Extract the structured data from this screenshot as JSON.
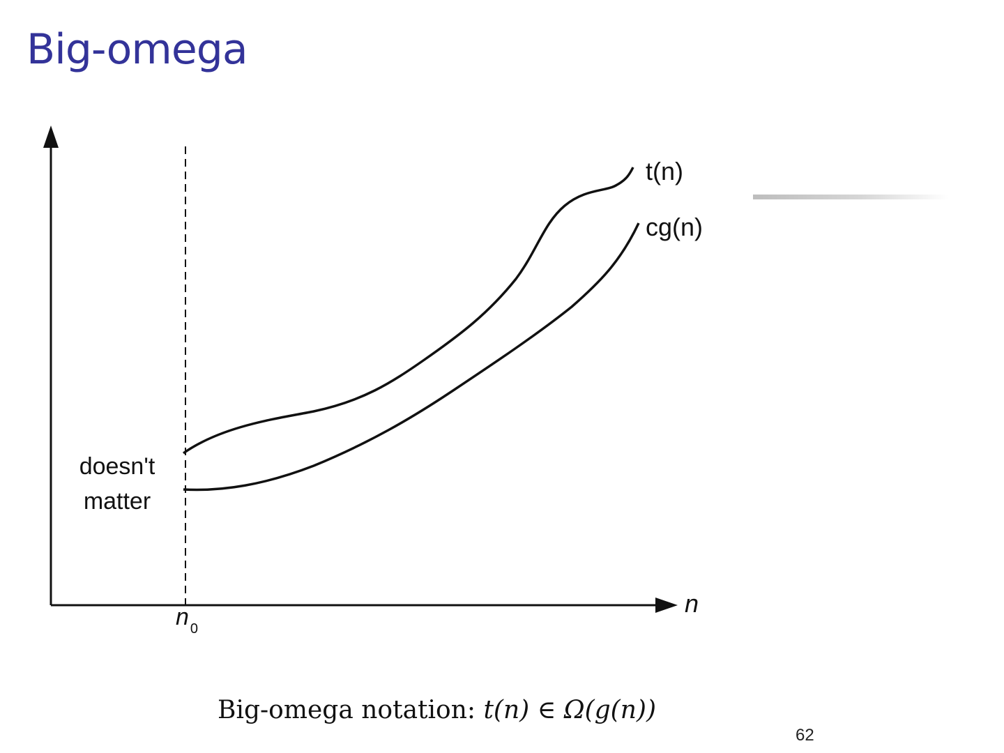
{
  "slide": {
    "title": "Big-omega",
    "page_number": "62",
    "accent_color": "#333399"
  },
  "diagram": {
    "curve_upper_label": "t(n)",
    "curve_lower_label": "cg(n)",
    "region_label_line1": "doesn't",
    "region_label_line2": "matter",
    "x_axis_label": "n",
    "threshold_label_main": "n",
    "threshold_label_sub": "0"
  },
  "caption": {
    "prefix": "Big-omega notation:",
    "formula": "t(n) ∈ Ω(g(n))"
  }
}
